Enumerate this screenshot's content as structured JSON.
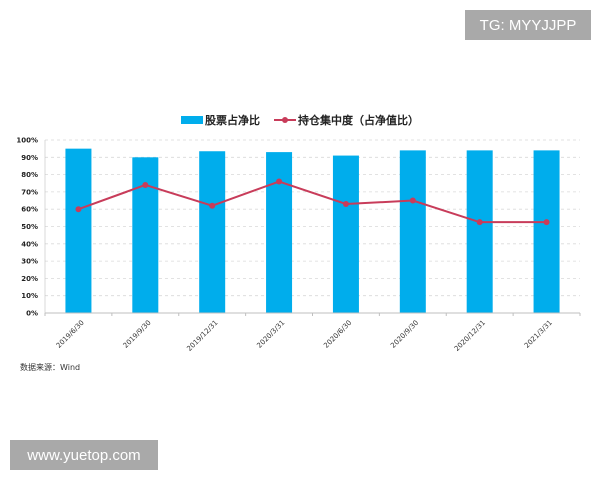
{
  "watermarks": {
    "top_right": "TG: MYYJJPP",
    "bottom_left": "www.yuetop.com"
  },
  "source_note": "数据来源：Wind",
  "colors": {
    "bar": "#00adec",
    "line": "#c83c5a",
    "grid": "#d9d9d9",
    "axis": "#bfbfbf"
  },
  "chart_data": {
    "type": "bar",
    "title": "",
    "xlabel": "",
    "ylabel": "",
    "ylim": [
      0,
      100
    ],
    "yticks": [
      "0%",
      "10%",
      "20%",
      "30%",
      "40%",
      "50%",
      "60%",
      "70%",
      "80%",
      "90%",
      "100%"
    ],
    "grid": true,
    "legend_position": "top",
    "categories": [
      "2019/6/30",
      "2019/9/30",
      "2019/12/31",
      "2020/3/31",
      "2020/6/30",
      "2020/9/30",
      "2020/12/31",
      "2021/3/31"
    ],
    "series": [
      {
        "name": "股票占净比",
        "type": "bar",
        "values": [
          95,
          90,
          93.5,
          93,
          91,
          94,
          94,
          94
        ]
      },
      {
        "name": "持仓集中度（占净值比）",
        "type": "line",
        "values": [
          60,
          74,
          62,
          76,
          63,
          65,
          52.5,
          52.5
        ]
      }
    ]
  }
}
